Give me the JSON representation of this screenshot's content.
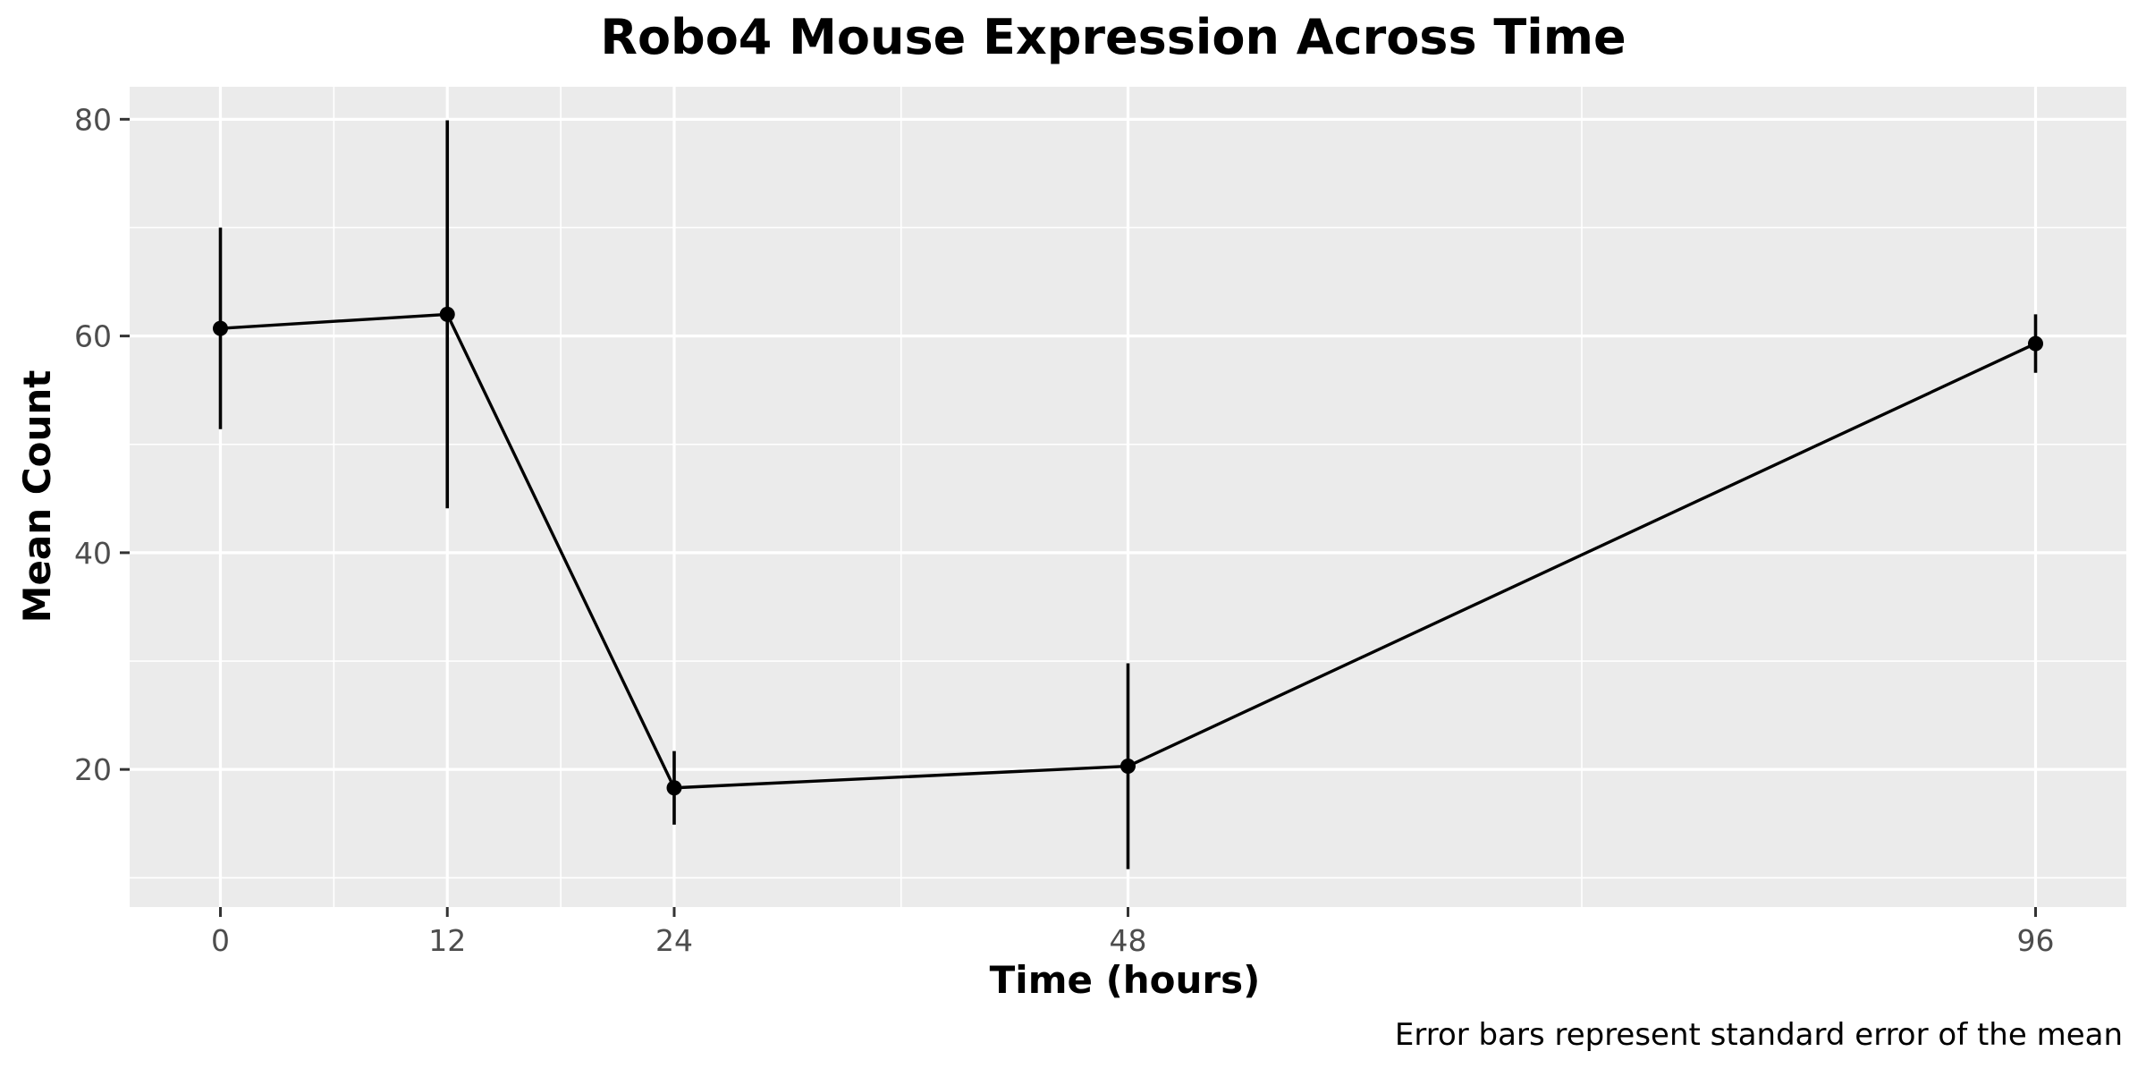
{
  "chart_data": {
    "type": "line",
    "title": "Robo4 Mouse Expression Across Time",
    "xlabel": "Time (hours)",
    "ylabel": "Mean Count",
    "caption": "Error bars represent standard error of the mean",
    "x": [
      0,
      12,
      24,
      48,
      96
    ],
    "x_ticks": [
      0,
      12,
      24,
      48,
      96
    ],
    "x_tick_labels": [
      "0",
      "12",
      "24",
      "48",
      "96"
    ],
    "y_ticks": [
      20,
      40,
      60,
      80
    ],
    "y_tick_labels": [
      "20",
      "40",
      "60",
      "80"
    ],
    "xlim": [
      -4.8,
      100.8
    ],
    "ylim": [
      7.3,
      83.0
    ],
    "grid": true,
    "series": [
      {
        "values": [
          60.7,
          62.0,
          18.3,
          20.3,
          59.3
        ],
        "error_low": [
          51.4,
          44.1,
          14.9,
          10.8,
          56.6
        ],
        "error_high": [
          70.0,
          79.9,
          21.7,
          29.8,
          62.0
        ]
      }
    ],
    "colors": {
      "panel_background": "#ebebeb",
      "grid": "#ffffff",
      "line": "#000000",
      "point": "#000000",
      "tick_text": "#4d4d4d"
    }
  }
}
